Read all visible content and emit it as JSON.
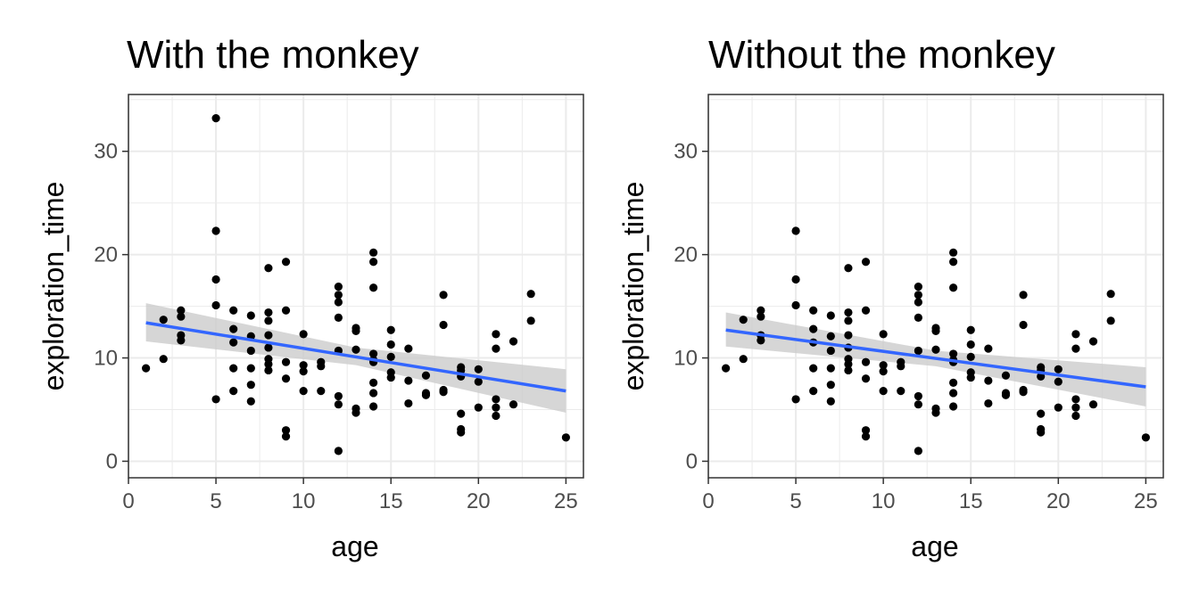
{
  "chart_data": [
    {
      "type": "scatter",
      "title": "With the monkey",
      "xlabel": "age",
      "ylabel": "exploration_time",
      "xlim": [
        0,
        26
      ],
      "ylim": [
        -1.6,
        35.5
      ],
      "xticks": [
        0,
        5,
        10,
        15,
        20,
        25
      ],
      "yticks": [
        0,
        10,
        20,
        30
      ],
      "grid": true,
      "points_color": "#000000",
      "fit": {
        "method": "linear",
        "color": "#3366ff",
        "band_color": "#cccccc",
        "x": [
          1,
          25
        ],
        "y": [
          13.4,
          6.8
        ],
        "band_low": [
          11.6,
          4.7
        ],
        "band_high": [
          15.3,
          8.9
        ],
        "band_mid_x": 13,
        "band_mid_low": [
          9.3
        ],
        "band_mid_high": [
          11.0
        ]
      },
      "points": [
        [
          1,
          9.0
        ],
        [
          2,
          13.7
        ],
        [
          2,
          9.9
        ],
        [
          3,
          14.6
        ],
        [
          3,
          14.0
        ],
        [
          3,
          12.2
        ],
        [
          3,
          11.7
        ],
        [
          5,
          33.2
        ],
        [
          5,
          22.3
        ],
        [
          5,
          17.6
        ],
        [
          5,
          15.1
        ],
        [
          5,
          6.0
        ],
        [
          6,
          14.6
        ],
        [
          6,
          12.8
        ],
        [
          6,
          11.5
        ],
        [
          6,
          9.0
        ],
        [
          6,
          6.8
        ],
        [
          7,
          14.1
        ],
        [
          7,
          12.1
        ],
        [
          7,
          10.7
        ],
        [
          7,
          9.0
        ],
        [
          7,
          7.4
        ],
        [
          7,
          5.8
        ],
        [
          8,
          18.7
        ],
        [
          8,
          14.4
        ],
        [
          8,
          13.6
        ],
        [
          8,
          12.2
        ],
        [
          8,
          11.0
        ],
        [
          8,
          9.9
        ],
        [
          8,
          9.4
        ],
        [
          8,
          8.8
        ],
        [
          9,
          19.3
        ],
        [
          9,
          14.6
        ],
        [
          9,
          9.6
        ],
        [
          9,
          8.0
        ],
        [
          9,
          3.0
        ],
        [
          9,
          2.4
        ],
        [
          10,
          12.3
        ],
        [
          10,
          9.3
        ],
        [
          10,
          8.7
        ],
        [
          10,
          6.8
        ],
        [
          11,
          9.6
        ],
        [
          11,
          9.2
        ],
        [
          11,
          6.8
        ],
        [
          12,
          16.9
        ],
        [
          12,
          16.1
        ],
        [
          12,
          15.4
        ],
        [
          12,
          13.9
        ],
        [
          12,
          10.7
        ],
        [
          12,
          6.3
        ],
        [
          12,
          5.5
        ],
        [
          12,
          1.0
        ],
        [
          13,
          12.9
        ],
        [
          13,
          12.6
        ],
        [
          13,
          10.8
        ],
        [
          13,
          5.1
        ],
        [
          13,
          4.7
        ],
        [
          14,
          20.2
        ],
        [
          14,
          19.3
        ],
        [
          14,
          16.8
        ],
        [
          14,
          10.4
        ],
        [
          14,
          9.8
        ],
        [
          14,
          9.6
        ],
        [
          14,
          7.6
        ],
        [
          14,
          6.6
        ],
        [
          14,
          5.3
        ],
        [
          15,
          12.7
        ],
        [
          15,
          11.3
        ],
        [
          15,
          10.1
        ],
        [
          15,
          8.6
        ],
        [
          15,
          8.1
        ],
        [
          16,
          10.9
        ],
        [
          16,
          7.8
        ],
        [
          16,
          5.6
        ],
        [
          17,
          8.3
        ],
        [
          17,
          6.6
        ],
        [
          17,
          6.4
        ],
        [
          18,
          16.1
        ],
        [
          18,
          13.2
        ],
        [
          18,
          6.9
        ],
        [
          18,
          6.7
        ],
        [
          19,
          9.1
        ],
        [
          19,
          8.8
        ],
        [
          19,
          8.2
        ],
        [
          19,
          4.6
        ],
        [
          19,
          3.1
        ],
        [
          19,
          2.8
        ],
        [
          20,
          8.9
        ],
        [
          20,
          7.7
        ],
        [
          20,
          5.2
        ],
        [
          21,
          12.3
        ],
        [
          21,
          10.9
        ],
        [
          21,
          6.0
        ],
        [
          21,
          5.2
        ],
        [
          21,
          4.4
        ],
        [
          22,
          11.6
        ],
        [
          22,
          5.5
        ],
        [
          23,
          16.2
        ],
        [
          23,
          13.6
        ],
        [
          25,
          2.3
        ]
      ]
    },
    {
      "type": "scatter",
      "title": "Without the monkey",
      "xlabel": "age",
      "ylabel": "exploration_time",
      "xlim": [
        0,
        26
      ],
      "ylim": [
        -1.6,
        35.5
      ],
      "xticks": [
        0,
        5,
        10,
        15,
        20,
        25
      ],
      "yticks": [
        0,
        10,
        20,
        30
      ],
      "grid": true,
      "points_color": "#000000",
      "fit": {
        "method": "linear",
        "color": "#3366ff",
        "band_color": "#cccccc",
        "x": [
          1,
          25
        ],
        "y": [
          12.7,
          7.2
        ],
        "band_low": [
          11.1,
          5.3
        ],
        "band_high": [
          14.4,
          9.1
        ],
        "band_mid_x": 13,
        "band_mid_low": [
          9.2
        ],
        "band_mid_high": [
          10.7
        ]
      },
      "points": [
        [
          1,
          9.0
        ],
        [
          2,
          13.7
        ],
        [
          2,
          9.9
        ],
        [
          3,
          14.6
        ],
        [
          3,
          14.0
        ],
        [
          3,
          12.2
        ],
        [
          3,
          11.7
        ],
        [
          5,
          22.3
        ],
        [
          5,
          17.6
        ],
        [
          5,
          15.1
        ],
        [
          5,
          6.0
        ],
        [
          6,
          14.6
        ],
        [
          6,
          12.8
        ],
        [
          6,
          11.5
        ],
        [
          6,
          9.0
        ],
        [
          6,
          6.8
        ],
        [
          7,
          14.1
        ],
        [
          7,
          12.1
        ],
        [
          7,
          10.7
        ],
        [
          7,
          9.0
        ],
        [
          7,
          7.4
        ],
        [
          7,
          5.8
        ],
        [
          8,
          18.7
        ],
        [
          8,
          14.4
        ],
        [
          8,
          13.6
        ],
        [
          8,
          12.2
        ],
        [
          8,
          11.0
        ],
        [
          8,
          9.9
        ],
        [
          8,
          9.4
        ],
        [
          8,
          8.8
        ],
        [
          9,
          19.3
        ],
        [
          9,
          14.6
        ],
        [
          9,
          9.6
        ],
        [
          9,
          8.0
        ],
        [
          9,
          3.0
        ],
        [
          9,
          2.4
        ],
        [
          10,
          12.3
        ],
        [
          10,
          9.3
        ],
        [
          10,
          8.7
        ],
        [
          10,
          6.8
        ],
        [
          11,
          9.6
        ],
        [
          11,
          9.2
        ],
        [
          11,
          6.8
        ],
        [
          12,
          16.9
        ],
        [
          12,
          16.1
        ],
        [
          12,
          15.4
        ],
        [
          12,
          13.9
        ],
        [
          12,
          10.7
        ],
        [
          12,
          6.3
        ],
        [
          12,
          5.5
        ],
        [
          12,
          1.0
        ],
        [
          13,
          12.9
        ],
        [
          13,
          12.6
        ],
        [
          13,
          10.8
        ],
        [
          13,
          5.1
        ],
        [
          13,
          4.7
        ],
        [
          14,
          20.2
        ],
        [
          14,
          19.3
        ],
        [
          14,
          16.8
        ],
        [
          14,
          10.4
        ],
        [
          14,
          9.8
        ],
        [
          14,
          9.6
        ],
        [
          14,
          7.6
        ],
        [
          14,
          6.6
        ],
        [
          14,
          5.3
        ],
        [
          15,
          12.7
        ],
        [
          15,
          11.3
        ],
        [
          15,
          10.1
        ],
        [
          15,
          8.6
        ],
        [
          15,
          8.1
        ],
        [
          16,
          10.9
        ],
        [
          16,
          7.8
        ],
        [
          16,
          5.6
        ],
        [
          17,
          8.3
        ],
        [
          17,
          6.6
        ],
        [
          17,
          6.4
        ],
        [
          18,
          16.1
        ],
        [
          18,
          13.2
        ],
        [
          18,
          6.9
        ],
        [
          18,
          6.7
        ],
        [
          19,
          9.1
        ],
        [
          19,
          8.8
        ],
        [
          19,
          8.2
        ],
        [
          19,
          4.6
        ],
        [
          19,
          3.1
        ],
        [
          19,
          2.8
        ],
        [
          20,
          8.9
        ],
        [
          20,
          7.7
        ],
        [
          20,
          5.2
        ],
        [
          21,
          12.3
        ],
        [
          21,
          10.9
        ],
        [
          21,
          6.0
        ],
        [
          21,
          5.2
        ],
        [
          21,
          4.4
        ],
        [
          22,
          11.6
        ],
        [
          22,
          5.5
        ],
        [
          23,
          16.2
        ],
        [
          23,
          13.6
        ],
        [
          25,
          2.3
        ]
      ]
    }
  ]
}
